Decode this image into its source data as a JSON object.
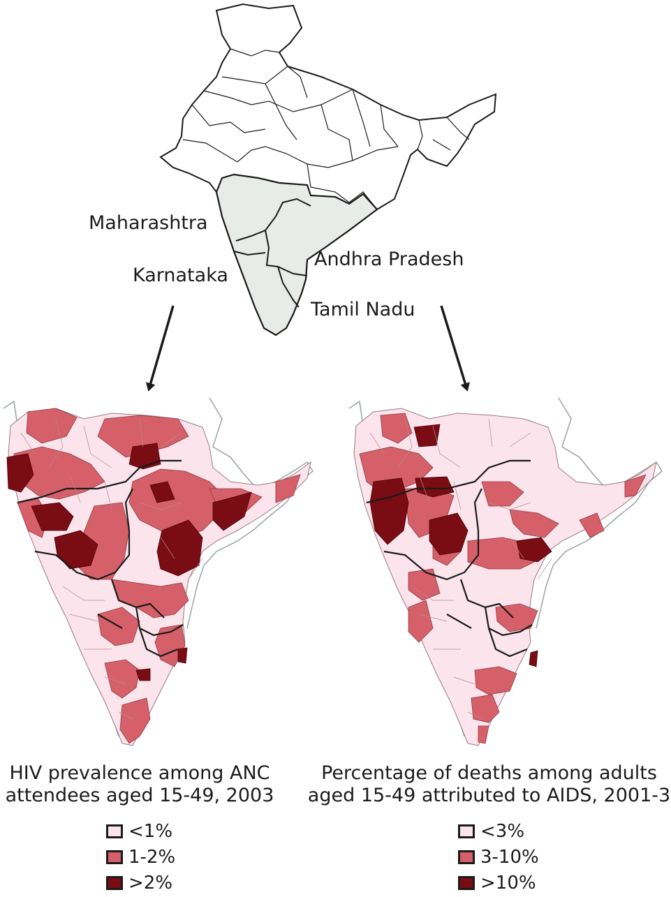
{
  "top_map": {
    "labels": {
      "maharashtra": "Maharashtra",
      "karnataka": "Karnataka",
      "andhra_pradesh": "Andhra Pradesh",
      "tamil_nadu": "Tamil Nadu"
    }
  },
  "left_map": {
    "title_line1": "HIV prevalence among ANC",
    "title_line2": "attendees aged 15-49, 2003",
    "legend": [
      {
        "label": "<1%",
        "color": "#fbe4ec"
      },
      {
        "label": "1-2%",
        "color": "#d6606a"
      },
      {
        "label": ">2%",
        "color": "#7a0c14"
      }
    ]
  },
  "right_map": {
    "title_line1": "Percentage of deaths among adults",
    "title_line2": "aged 15-49 attributed to AIDS, 2001-3",
    "legend": [
      {
        "label": "<3%",
        "color": "#fbe4ec"
      },
      {
        "label": "3-10%",
        "color": "#d6606a"
      },
      {
        "label": ">10%",
        "color": "#7a0c14"
      }
    ]
  },
  "colors": {
    "low": "#fbe4ec",
    "mid": "#d6606a",
    "high": "#7a0c14",
    "highlight": "#e8ece8",
    "outline": "#1a1a1a"
  }
}
